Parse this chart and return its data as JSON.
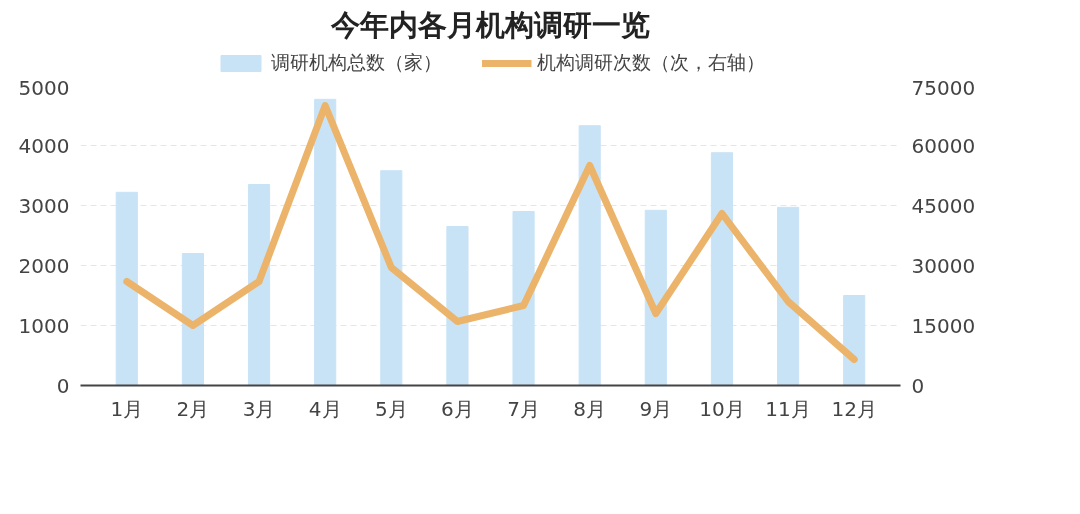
{
  "chart_data": {
    "type": "bar",
    "title": "今年内各月机构调研一览",
    "categories": [
      "1月",
      "2月",
      "3月",
      "4月",
      "5月",
      "6月",
      "7月",
      "8月",
      "9月",
      "10月",
      "11月",
      "12月"
    ],
    "series": [
      {
        "name": "调研机构总数（家）",
        "color": "#c9e3f6",
        "values": [
          3220,
          2200,
          3350,
          4770,
          3580,
          2650,
          2900,
          4330,
          2920,
          3880,
          2970,
          1500
        ]
      },
      {
        "name": "机构调研次数（次，右轴）",
        "type": "line",
        "axis": "y2",
        "color": "#ebb46a",
        "values": [
          26000,
          15000,
          26000,
          70000,
          29500,
          16000,
          20000,
          55000,
          18000,
          43000,
          21000,
          6500
        ]
      }
    ],
    "ylim": [
      0,
      5000
    ],
    "yticks": [
      0,
      1000,
      2000,
      3000,
      4000,
      5000
    ],
    "y2lim": [
      0,
      75000
    ],
    "y2ticks": [
      0,
      15000,
      30000,
      45000,
      60000,
      75000
    ],
    "grid": "y",
    "legend": "top"
  }
}
